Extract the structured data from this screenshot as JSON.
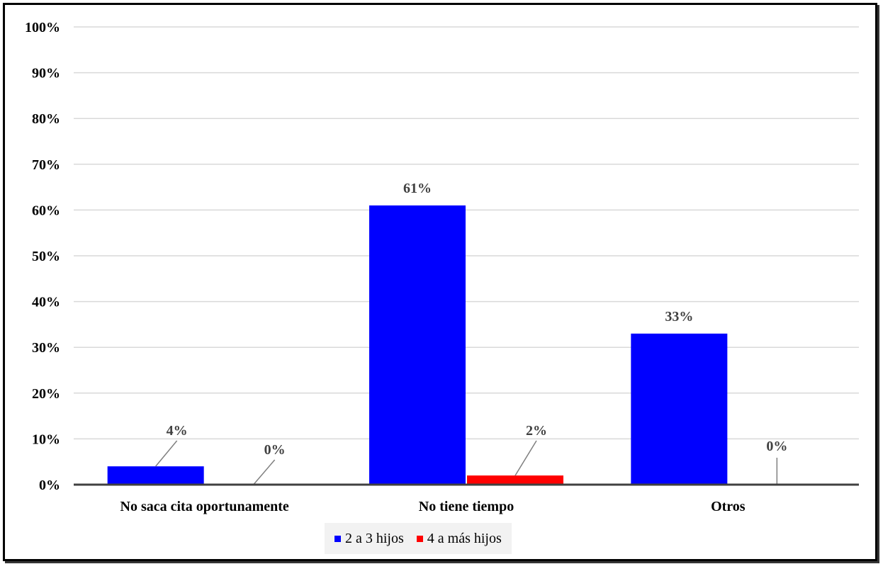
{
  "chart_data": {
    "type": "bar",
    "categories": [
      "No saca cita oportunamente",
      "No tiene tiempo",
      "Otros"
    ],
    "series": [
      {
        "name": "2 a 3 hijos",
        "color": "#0000ff",
        "values": [
          4,
          61,
          33
        ],
        "labels": [
          "4%",
          "61%",
          "33%"
        ]
      },
      {
        "name": "4 a más hijos",
        "color": "#ff0000",
        "values": [
          0,
          2,
          0
        ],
        "labels": [
          "0%",
          "2%",
          "0%"
        ]
      }
    ],
    "ylim": [
      0,
      100
    ],
    "yticks": [
      "0%",
      "10%",
      "20%",
      "30%",
      "40%",
      "50%",
      "60%",
      "70%",
      "80%",
      "90%",
      "100%"
    ],
    "grid": true,
    "legend_position": "bottom"
  }
}
